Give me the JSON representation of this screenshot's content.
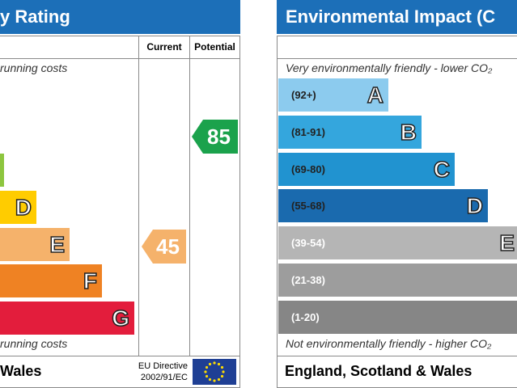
{
  "left_panel": {
    "title": "y Rating",
    "columns": [
      "Current",
      "Potential"
    ],
    "top_note": "running costs",
    "bottom_note": "running costs",
    "bands": [
      "D",
      "E",
      "F",
      "G"
    ],
    "current": 45,
    "potential": 85,
    "footer": "Wales",
    "directive": [
      "EU Directive",
      "2002/91/EC"
    ]
  },
  "right_panel": {
    "title": "Environmental Impact (C",
    "top_note": "Very environmentally friendly - lower CO₂",
    "bottom_note": "Not environmentally friendly - higher CO₂",
    "bands": [
      {
        "range": "(92+)",
        "letter": "A"
      },
      {
        "range": "(81-91)",
        "letter": "B"
      },
      {
        "range": "(69-80)",
        "letter": "C"
      },
      {
        "range": "(55-68)",
        "letter": "D"
      },
      {
        "range": "(39-54)",
        "letter": "E"
      },
      {
        "range": "(21-38)"
      },
      {
        "range": "(1-20)"
      }
    ],
    "footer": "England, Scotland & Wales"
  }
}
